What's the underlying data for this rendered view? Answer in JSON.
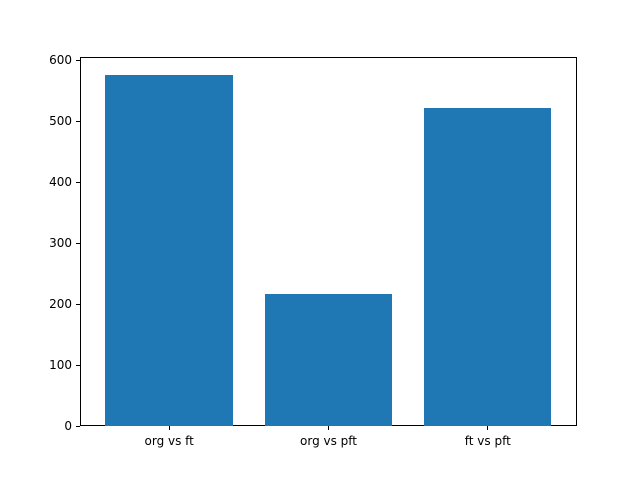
{
  "chart_data": {
    "type": "bar",
    "title": "",
    "xlabel": "",
    "ylabel": "",
    "categories": [
      "org vs ft",
      "org vs pft",
      "ft vs pft"
    ],
    "values": [
      575,
      216,
      522
    ],
    "yticks": [
      0,
      100,
      200,
      300,
      400,
      500,
      600
    ],
    "ylim": [
      0,
      605
    ],
    "grid": false,
    "legend": "none",
    "bar_color": "#1f77b4",
    "spine_color": "#000000",
    "figure_background": "#ffffff",
    "axes_background": "#ffffff"
  }
}
